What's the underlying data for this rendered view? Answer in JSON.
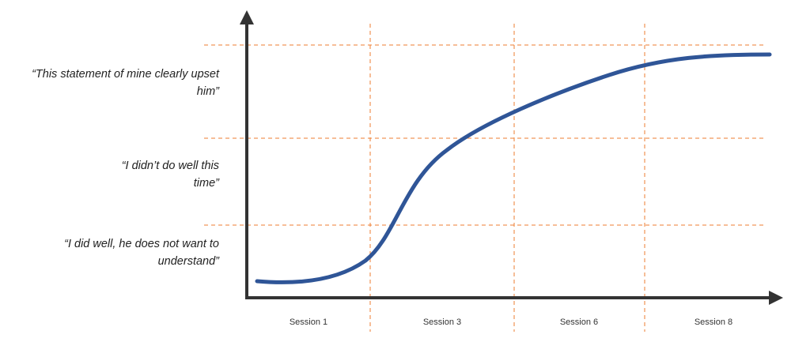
{
  "y_labels": [
    [
      "“I did well, he does not want to",
      "understand”"
    ],
    [
      "“I didn’t do well this",
      "time”"
    ],
    [
      "“This statement of mine clearly upset",
      "him”"
    ]
  ],
  "x_labels": [
    "Session 1",
    "Session 3",
    "Session 6",
    "Session 8"
  ]
}
